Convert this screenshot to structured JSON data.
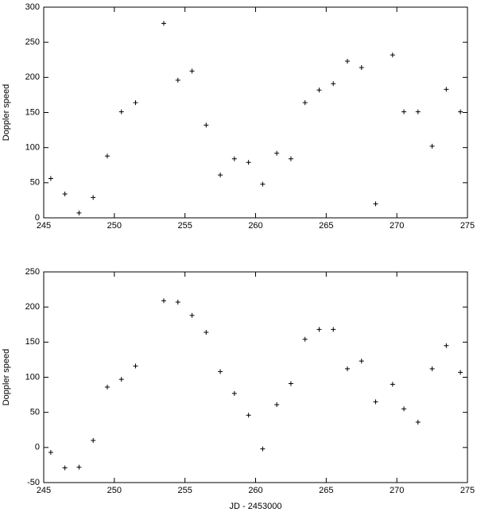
{
  "chart_data": [
    {
      "type": "scatter",
      "ylabel": "Doppler speed",
      "color": "#000000",
      "xlim": [
        245,
        275
      ],
      "xticks": [
        245,
        250,
        255,
        260,
        265,
        270,
        275
      ],
      "ylim": [
        0,
        300
      ],
      "yticks": [
        0,
        50,
        100,
        150,
        200,
        250,
        300
      ],
      "x": [
        245.5,
        246.5,
        247.5,
        248.5,
        249.5,
        250.5,
        251.5,
        253.5,
        254.5,
        255.5,
        256.5,
        257.5,
        258.5,
        259.5,
        260.5,
        261.5,
        262.5,
        263.5,
        264.5,
        265.5,
        266.5,
        267.5,
        268.5,
        269.7,
        270.5,
        271.5,
        272.5,
        273.5,
        274.5
      ],
      "values": [
        56,
        34,
        7,
        29,
        88,
        151,
        164,
        277,
        196,
        209,
        132,
        61,
        84,
        79,
        48,
        92,
        84,
        164,
        182,
        191,
        223,
        214,
        20,
        232,
        151,
        151,
        102,
        183,
        151
      ]
    },
    {
      "type": "scatter",
      "ylabel": "Doppler speed",
      "xlabel": "JD - 2453000",
      "color": "#000000",
      "xlim": [
        245,
        275
      ],
      "xticks": [
        245,
        250,
        255,
        260,
        265,
        270,
        275
      ],
      "ylim": [
        -50,
        250
      ],
      "yticks": [
        -50,
        0,
        50,
        100,
        150,
        200,
        250
      ],
      "x": [
        245.5,
        246.5,
        247.5,
        248.5,
        249.5,
        250.5,
        251.5,
        253.5,
        254.5,
        255.5,
        256.5,
        257.5,
        258.5,
        259.5,
        260.5,
        261.5,
        262.5,
        263.5,
        264.5,
        265.5,
        266.5,
        267.5,
        268.5,
        269.7,
        270.5,
        271.5,
        272.5,
        273.5,
        274.5
      ],
      "values": [
        -7,
        -29,
        -28,
        10,
        86,
        97,
        116,
        209,
        207,
        188,
        164,
        108,
        77,
        46,
        -2,
        61,
        91,
        154,
        168,
        168,
        112,
        123,
        65,
        90,
        55,
        36,
        112,
        145,
        107
      ]
    }
  ]
}
